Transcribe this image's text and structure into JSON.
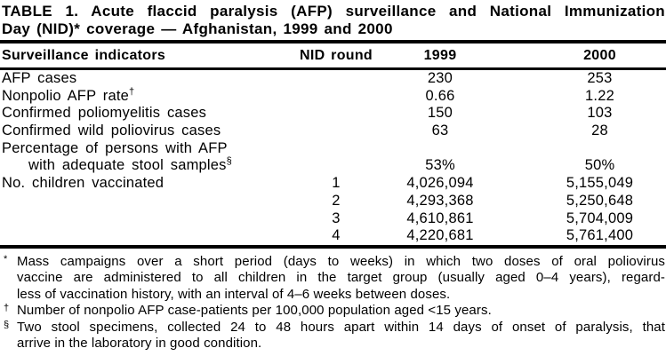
{
  "table": {
    "title_line1": "TABLE 1. Acute flaccid paralysis (AFP) surveillance and National Immunization",
    "title_line2": "Day (NID)* coverage — Afghanistan, 1999 and 2000",
    "columns": [
      "Surveillance indicators",
      "NID round",
      "1999",
      "2000"
    ],
    "rows": [
      {
        "indicator": "AFP cases",
        "sup": "",
        "indent": false,
        "nid_round": "",
        "v1999": "230",
        "v2000": "253"
      },
      {
        "indicator": "Nonpolio AFP rate",
        "sup": "†",
        "indent": false,
        "nid_round": "",
        "v1999": "0.66",
        "v2000": "1.22"
      },
      {
        "indicator": "Confirmed poliomyelitis cases",
        "sup": "",
        "indent": false,
        "nid_round": "",
        "v1999": "150",
        "v2000": "103"
      },
      {
        "indicator": "Confirmed wild poliovirus cases",
        "sup": "",
        "indent": false,
        "nid_round": "",
        "v1999": "63",
        "v2000": "28"
      },
      {
        "indicator": "Percentage of persons with AFP",
        "sup": "",
        "indent": false,
        "nid_round": "",
        "v1999": "",
        "v2000": ""
      },
      {
        "indicator": "with adequate stool samples",
        "sup": "§",
        "indent": true,
        "nid_round": "",
        "v1999": "53%",
        "v2000": "50%"
      },
      {
        "indicator": "No. children vaccinated",
        "sup": "",
        "indent": false,
        "nid_round": "1",
        "v1999": "4,026,094",
        "v2000": "5,155,049"
      },
      {
        "indicator": "",
        "sup": "",
        "indent": false,
        "nid_round": "2",
        "v1999": "4,293,368",
        "v2000": "5,250,648"
      },
      {
        "indicator": "",
        "sup": "",
        "indent": false,
        "nid_round": "3",
        "v1999": "4,610,861",
        "v2000": "5,704,009"
      },
      {
        "indicator": "",
        "sup": "",
        "indent": false,
        "nid_round": "4",
        "v1999": "4,220,681",
        "v2000": "5,761,400"
      }
    ]
  },
  "footnotes": [
    {
      "marker": "*",
      "lines": [
        "Mass campaigns over a short period (days to weeks) in which two doses of oral poliovirus",
        "vaccine are administered to all children in the target group (usually aged 0–4 years), regard-",
        "less of vaccination history, with an interval of 4–6 weeks between doses."
      ]
    },
    {
      "marker": "†",
      "lines": [
        "Number of nonpolio AFP case-patients per 100,000 population aged <15 years."
      ]
    },
    {
      "marker": "§",
      "lines": [
        "Two stool specimens, collected 24 to 48 hours apart within 14 days of onset of paralysis, that",
        "arrive in the laboratory in good condition."
      ]
    }
  ]
}
